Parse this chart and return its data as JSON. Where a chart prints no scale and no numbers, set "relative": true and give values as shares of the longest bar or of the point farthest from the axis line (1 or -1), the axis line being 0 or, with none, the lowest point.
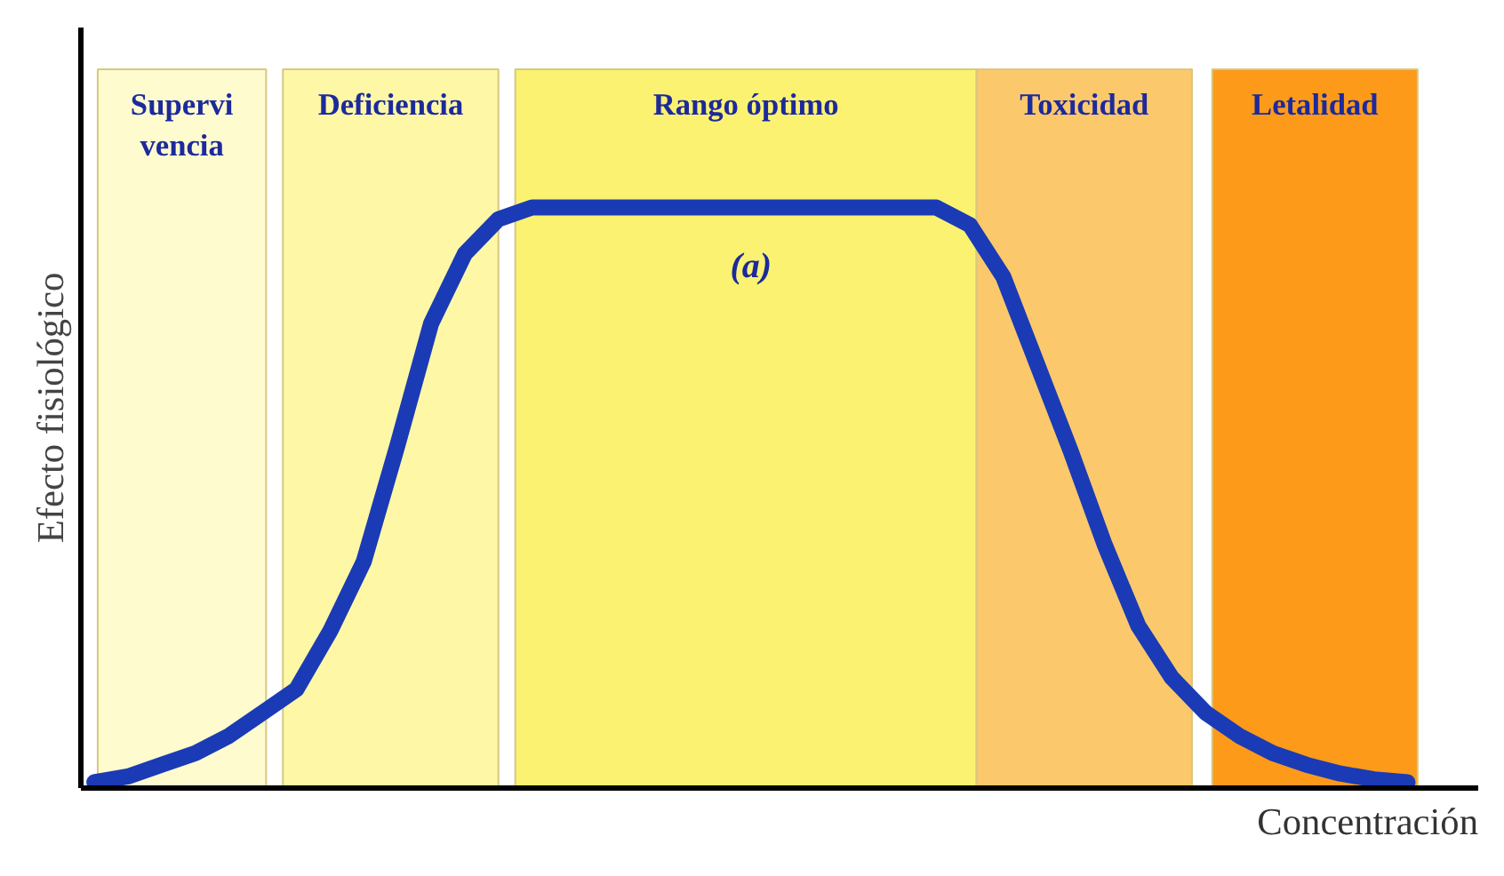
{
  "chart_data": {
    "type": "line",
    "relative": true,
    "xlabel": "Concentración",
    "ylabel": "Efecto fisiológico",
    "categories": [
      null,
      null,
      null,
      null,
      null,
      null,
      null,
      null,
      null,
      null,
      null,
      null,
      null,
      null,
      null,
      null,
      null,
      null,
      null,
      null,
      null,
      null,
      null,
      null,
      null,
      null,
      null,
      null,
      null,
      null,
      null,
      null,
      null,
      null,
      null,
      null,
      null,
      null,
      null,
      null
    ],
    "series": [
      {
        "color": "#1a3bb5",
        "values": [
          0.01,
          0.02,
          0.04,
          0.06,
          0.09,
          0.13,
          0.17,
          0.27,
          0.39,
          0.59,
          0.8,
          0.92,
          0.98,
          1,
          1,
          1,
          1,
          1,
          1,
          1,
          1,
          1,
          1,
          1,
          1,
          1,
          0.97,
          0.88,
          0.73,
          0.58,
          0.42,
          0.28,
          0.19,
          0.13,
          0.09,
          0.06,
          0.04,
          0.025,
          0.015,
          0.01
        ]
      }
    ],
    "annotations": [
      "Supervi\nvencia",
      "Deficiencia",
      "Rango óptimo",
      "Toxicidad",
      "Letalidad",
      "(a)"
    ],
    "tick_labels": false,
    "marker": "none",
    "line_style": "solid"
  }
}
